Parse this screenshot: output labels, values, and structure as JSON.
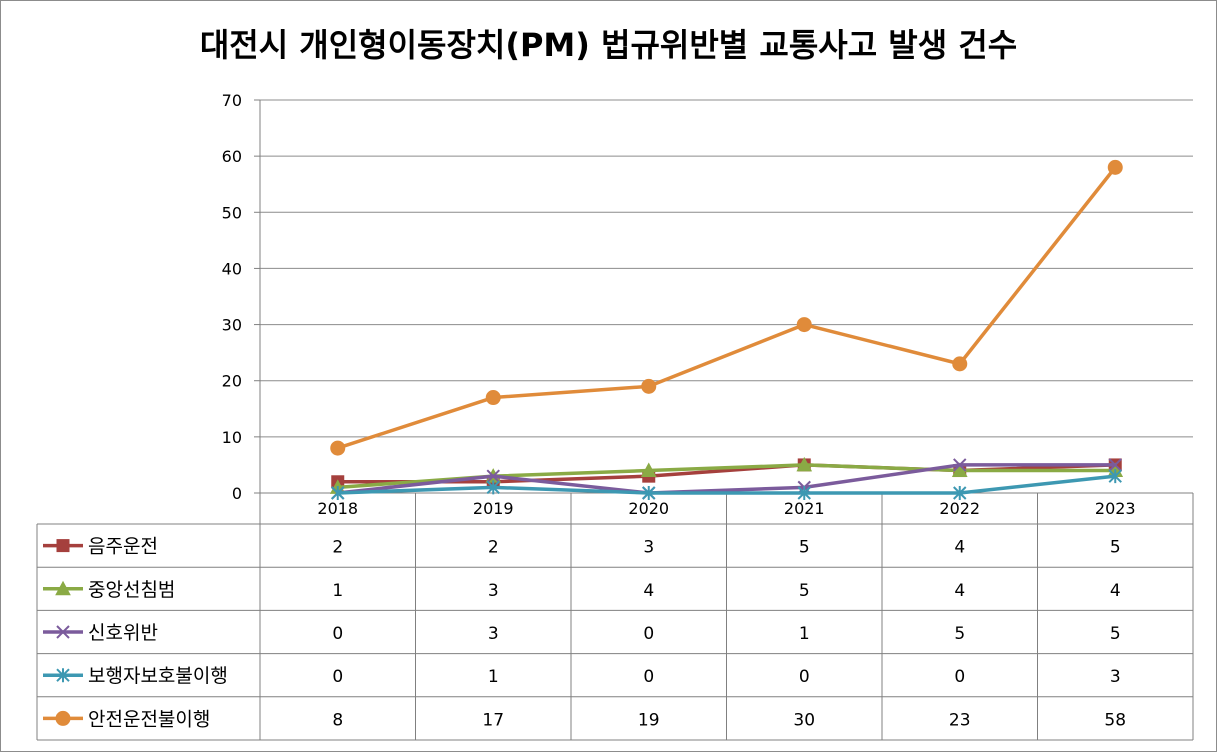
{
  "chart_data": {
    "type": "line",
    "title": "대전시 개인형이동장치(PM) 법규위반별 교통사고 발생 건수",
    "categories": [
      "2018",
      "2019",
      "2020",
      "2021",
      "2022",
      "2023"
    ],
    "ylim": [
      0,
      70
    ],
    "yticks": [
      0,
      10,
      20,
      30,
      40,
      50,
      60,
      70
    ],
    "grid": true,
    "legend": "data-table-left",
    "series": [
      {
        "name": "음주운전",
        "values": [
          2,
          2,
          3,
          5,
          4,
          5
        ],
        "color": "#a5403d",
        "marker": "square"
      },
      {
        "name": "중앙선침범",
        "values": [
          1,
          3,
          4,
          5,
          4,
          4
        ],
        "color": "#8aaa45",
        "marker": "triangle"
      },
      {
        "name": "신호위반",
        "values": [
          0,
          3,
          0,
          1,
          5,
          5
        ],
        "color": "#7b5b9c",
        "marker": "x"
      },
      {
        "name": "보행자보호불이행",
        "values": [
          0,
          1,
          0,
          0,
          0,
          3
        ],
        "color": "#3d98b2",
        "marker": "star"
      },
      {
        "name": "안전운전불이행",
        "values": [
          8,
          17,
          19,
          30,
          23,
          58
        ],
        "color": "#e08b3a",
        "marker": "circle"
      }
    ]
  }
}
